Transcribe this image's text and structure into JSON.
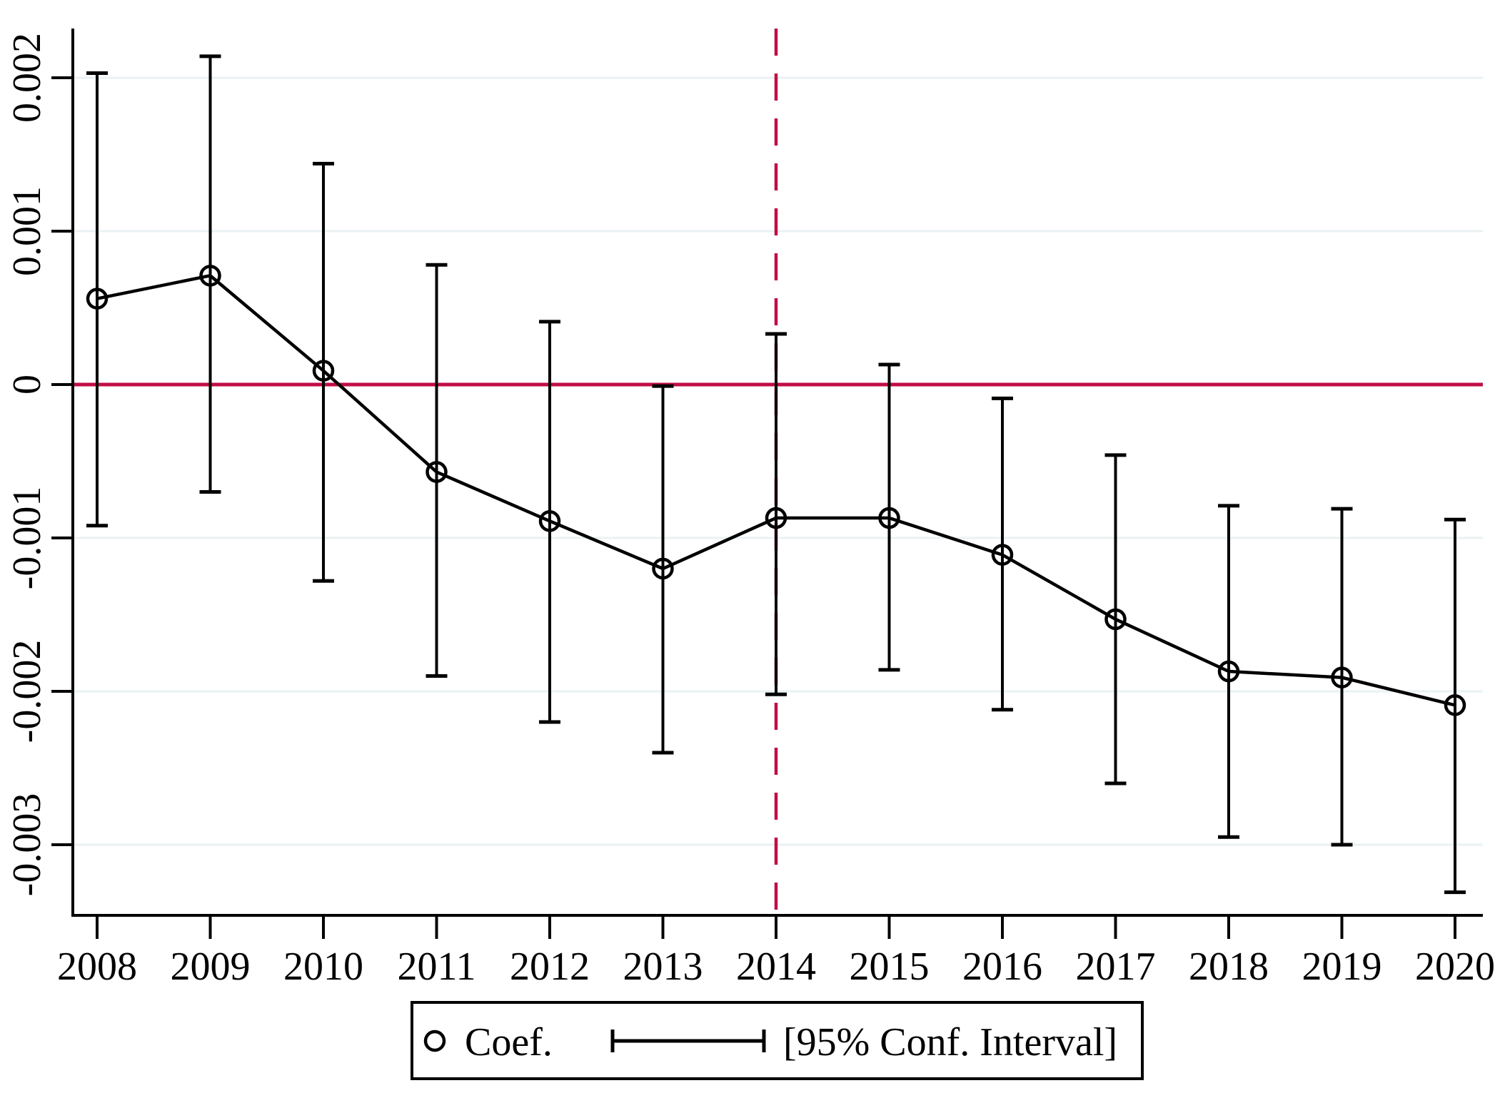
{
  "chart_data": {
    "type": "scatter",
    "subtype": "coefficient-plot-with-error-bars",
    "title": "",
    "xlabel": "",
    "ylabel": "",
    "x_values": [
      2008,
      2009,
      2010,
      2011,
      2012,
      2013,
      2014,
      2015,
      2016,
      2017,
      2018,
      2019,
      2020
    ],
    "x_tick_labels": [
      "2008",
      "2009",
      "2010",
      "2011",
      "2012",
      "2013",
      "2014",
      "2015",
      "2016",
      "2017",
      "2018",
      "2019",
      "2020"
    ],
    "series": [
      {
        "name": "Coef.",
        "marker": "hollow-circle",
        "values": [
          0.00056,
          0.00071,
          9e-05,
          -0.00057,
          -0.00089,
          -0.0012,
          -0.00087,
          -0.00087,
          -0.00111,
          -0.00153,
          -0.00187,
          -0.00191,
          -0.00209
        ],
        "ci_upper": [
          0.00203,
          0.00214,
          0.00144,
          0.00078,
          0.00041,
          -1e-05,
          0.00033,
          0.00013,
          -9e-05,
          -0.00046,
          -0.00079,
          -0.00081,
          -0.00088
        ],
        "ci_lower": [
          -0.00092,
          -0.0007,
          -0.00128,
          -0.0019,
          -0.0022,
          -0.0024,
          -0.00202,
          -0.00186,
          -0.00212,
          -0.0026,
          -0.00295,
          -0.003,
          -0.00331
        ]
      }
    ],
    "y_ticks": [
      {
        "label": "0.002",
        "value": 0.002
      },
      {
        "label": "0.001",
        "value": 0.001
      },
      {
        "label": "0",
        "value": 0
      },
      {
        "label": "-0.001",
        "value": -0.001
      },
      {
        "label": "-0.002",
        "value": -0.002
      },
      {
        "label": "-0.003",
        "value": -0.003
      }
    ],
    "ylim": [
      -0.0034,
      0.0022
    ],
    "grid": "horizontal",
    "legend_position": "bottom-center",
    "reference_lines": [
      {
        "orientation": "horizontal",
        "value": 0,
        "style": "solid",
        "color": "#c20d45"
      },
      {
        "orientation": "vertical",
        "value": 2014,
        "style": "dashed",
        "color": "#c20d45"
      }
    ],
    "legend": {
      "entries": [
        {
          "marker": "hollow-circle",
          "label": "Coef."
        },
        {
          "marker": "error-bar",
          "label": "[95% Conf. Interval]"
        }
      ]
    },
    "colors": {
      "data": "#000000",
      "reference": "#c20d45",
      "gridline": "#eaf2f3",
      "text": "#000000",
      "background": "#ffffff"
    }
  }
}
